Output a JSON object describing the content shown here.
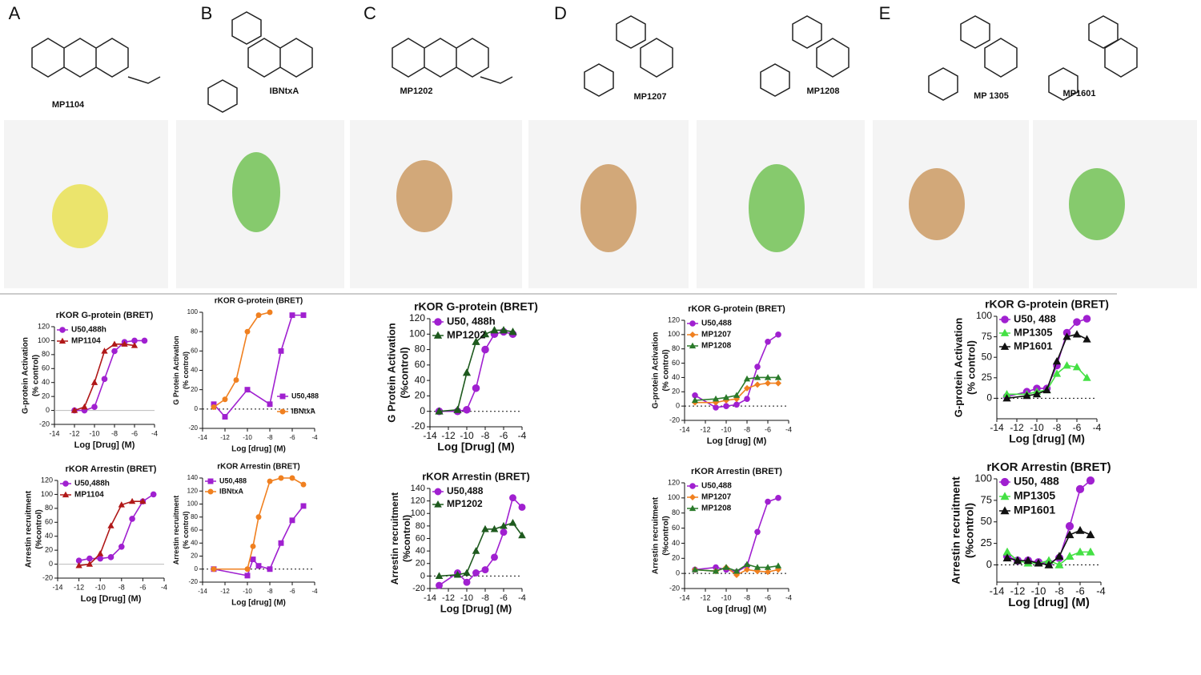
{
  "panels": [
    {
      "label": "A",
      "compounds": [
        "MP1104"
      ]
    },
    {
      "label": "B",
      "compounds": [
        "IBNtxA"
      ]
    },
    {
      "label": "C",
      "compounds": [
        "MP1202"
      ]
    },
    {
      "label": "D",
      "compounds": [
        "MP1207",
        "MP1208"
      ]
    },
    {
      "label": "E",
      "compounds": [
        "MP 1305",
        "MP1601"
      ]
    }
  ],
  "chart_data": [
    {
      "type": "line",
      "title": "rKOR G-protein (BRET)",
      "ylabel": [
        "G-protein Activation",
        "(% control)"
      ],
      "xlabel": "Log [Drug] (M)",
      "xlim": [
        -14,
        -4
      ],
      "xticks": [
        -14,
        -12,
        -10,
        -8,
        -6,
        -4
      ],
      "ylim": [
        -20,
        120
      ],
      "yticks": [
        -20,
        0,
        20,
        40,
        60,
        80,
        100,
        120
      ],
      "baseline": "solid",
      "legend": "upper left",
      "series": [
        {
          "name": "U50,488h",
          "color": "#a020d0",
          "marker": "circle",
          "x": [
            -12,
            -11,
            -10,
            -9,
            -8,
            -7,
            -6,
            -5
          ],
          "values": [
            0,
            0,
            5,
            45,
            85,
            98,
            100,
            100
          ]
        },
        {
          "name": "MP1104",
          "color": "#b01818",
          "marker": "triangle",
          "x": [
            -12,
            -11,
            -10,
            -9,
            -8,
            -7,
            -6
          ],
          "values": [
            0,
            5,
            40,
            85,
            95,
            95,
            93
          ]
        }
      ]
    },
    {
      "type": "line",
      "title": "rKOR G-protein (BRET)",
      "ylabel": [
        "G Protein Activation",
        "(% control)"
      ],
      "xlabel": "Log [drug] (M)",
      "xlim": [
        -14,
        -4
      ],
      "xticks": [
        -14,
        -12,
        -10,
        -8,
        -6,
        -4
      ],
      "ylim": [
        -20,
        100
      ],
      "yticks": [
        -20,
        0,
        20,
        40,
        60,
        80,
        100
      ],
      "baseline": "dotted",
      "legend": "lower right",
      "series": [
        {
          "name": "U50,488",
          "color": "#a020d0",
          "marker": "square",
          "x": [
            -13,
            -12,
            -10,
            -8,
            -7,
            -6,
            -5
          ],
          "values": [
            5,
            -8,
            20,
            5,
            60,
            97,
            97
          ]
        },
        {
          "name": "IBNtxA",
          "color": "#f08020",
          "marker": "circle",
          "x": [
            -13,
            -12,
            -11,
            -10,
            -9,
            -8
          ],
          "values": [
            2,
            10,
            30,
            80,
            97,
            100
          ]
        }
      ]
    },
    {
      "type": "line",
      "title": "rKOR G-protein  (BRET)",
      "ylabel": [
        "G Protein Activation",
        "(%control)"
      ],
      "xlabel": "Log [Drug] (M)",
      "xlim": [
        -14,
        -4
      ],
      "xticks": [
        -14,
        -12,
        -10,
        -8,
        -6,
        -4
      ],
      "ylim": [
        -20,
        120
      ],
      "yticks": [
        -20,
        0,
        20,
        40,
        60,
        80,
        100,
        120
      ],
      "baseline": "dotted",
      "legend": "upper left",
      "series": [
        {
          "name": "U50, 488h",
          "color": "#a020d0",
          "marker": "circle",
          "x": [
            -13,
            -11,
            -10,
            -9,
            -8,
            -7,
            -6,
            -5
          ],
          "values": [
            0,
            0,
            2,
            30,
            80,
            100,
            103,
            100
          ]
        },
        {
          "name": "MP1202",
          "color": "#1e5a1e",
          "marker": "triangle",
          "x": [
            -13,
            -11,
            -10,
            -9,
            -8,
            -7,
            -6,
            -5
          ],
          "values": [
            0,
            2,
            50,
            90,
            100,
            105,
            105,
            103
          ]
        }
      ]
    },
    {
      "type": "line",
      "title": "rKOR G-protein  (BRET)",
      "ylabel": [
        "G-protein Activation",
        "(% control)"
      ],
      "xlabel": "Log [drug] (M)",
      "xlim": [
        -14,
        -4
      ],
      "xticks": [
        -14,
        -12,
        -10,
        -8,
        -6,
        -4
      ],
      "ylim": [
        -20,
        120
      ],
      "yticks": [
        -20,
        0,
        20,
        40,
        60,
        80,
        100,
        120
      ],
      "baseline": "dotted",
      "legend": "upper left",
      "series": [
        {
          "name": "U50,488",
          "color": "#a020d0",
          "marker": "circle",
          "x": [
            -13,
            -11,
            -10,
            -9,
            -8,
            -7,
            -6,
            -5
          ],
          "values": [
            15,
            -2,
            0,
            2,
            10,
            55,
            90,
            100
          ]
        },
        {
          "name": "MP1207",
          "color": "#f08020",
          "marker": "diamond",
          "x": [
            -13,
            -11,
            -10,
            -9,
            -8,
            -7,
            -6,
            -5
          ],
          "values": [
            5,
            5,
            8,
            10,
            25,
            30,
            32,
            32
          ]
        },
        {
          "name": "MP1208",
          "color": "#2a7a2a",
          "marker": "triangle",
          "x": [
            -13,
            -11,
            -10,
            -9,
            -8,
            -7,
            -6,
            -5
          ],
          "values": [
            8,
            10,
            12,
            15,
            38,
            40,
            40,
            40
          ]
        }
      ]
    },
    {
      "type": "line",
      "title": "rKOR G-protein (BRET)",
      "ylabel": [
        "G-protein Activation",
        "(% control)"
      ],
      "xlabel": "Log [drug] (M)",
      "xlim": [
        -14,
        -4
      ],
      "xticks": [
        -14,
        -12,
        -10,
        -8,
        -6,
        -4
      ],
      "ylim": [
        -25,
        100
      ],
      "yticks": [
        0,
        25,
        50,
        75,
        100
      ],
      "baseline": "dotted",
      "legend": "upper left",
      "series": [
        {
          "name": "U50, 488",
          "color": "#a020d0",
          "marker": "circle",
          "x": [
            -13,
            -11,
            -10,
            -9,
            -8,
            -7,
            -6,
            -5
          ],
          "values": [
            2,
            8,
            12,
            12,
            40,
            80,
            93,
            97
          ]
        },
        {
          "name": "MP1305",
          "color": "#44e044",
          "marker": "triangle",
          "x": [
            -13,
            -11,
            -10,
            -9,
            -8,
            -7,
            -6,
            -5
          ],
          "values": [
            5,
            5,
            8,
            10,
            30,
            40,
            38,
            25
          ]
        },
        {
          "name": "MP1601",
          "color": "#111111",
          "marker": "triangle",
          "x": [
            -13,
            -11,
            -10,
            -9,
            -8,
            -7,
            -6,
            -5
          ],
          "values": [
            0,
            3,
            5,
            10,
            45,
            75,
            78,
            72
          ]
        }
      ]
    },
    {
      "type": "line",
      "title": "rKOR Arrestin (BRET)",
      "ylabel": [
        "Arrestin recruitment",
        "(%control)"
      ],
      "xlabel": "Log [Drug] (M)",
      "xlim": [
        -14,
        -4
      ],
      "xticks": [
        -14,
        -12,
        -10,
        -8,
        -6,
        -4
      ],
      "ylim": [
        -20,
        120
      ],
      "yticks": [
        -20,
        0,
        20,
        40,
        60,
        80,
        100,
        120
      ],
      "baseline": "solid",
      "legend": "upper left",
      "series": [
        {
          "name": "U50,488h",
          "color": "#a020d0",
          "marker": "circle",
          "x": [
            -12,
            -11,
            -10,
            -9,
            -8,
            -7,
            -6,
            -5
          ],
          "values": [
            5,
            8,
            8,
            10,
            25,
            65,
            90,
            100
          ]
        },
        {
          "name": "MP1104",
          "color": "#b01818",
          "marker": "triangle",
          "x": [
            -12,
            -11,
            -10,
            -9,
            -8,
            -7,
            -6
          ],
          "values": [
            -2,
            0,
            15,
            55,
            85,
            90,
            90
          ]
        }
      ]
    },
    {
      "type": "line",
      "title": "rKOR Arrestin (BRET)",
      "ylabel": [
        "Arrestin recruitment",
        "(% control)"
      ],
      "xlabel": "Log [drug] (M)",
      "xlim": [
        -14,
        -4
      ],
      "xticks": [
        -14,
        -12,
        -10,
        -8,
        -6,
        -4
      ],
      "ylim": [
        -20,
        140
      ],
      "yticks": [
        -20,
        0,
        20,
        40,
        60,
        80,
        100,
        120,
        140
      ],
      "baseline": "dotted",
      "legend": "upper left",
      "series": [
        {
          "name": "U50,488",
          "color": "#a020d0",
          "marker": "square",
          "x": [
            -13,
            -10,
            -9.5,
            -9,
            -8,
            -7,
            -6,
            -5
          ],
          "values": [
            0,
            -10,
            15,
            5,
            0,
            40,
            75,
            97
          ]
        },
        {
          "name": "IBNtxA",
          "color": "#f08020",
          "marker": "circle",
          "x": [
            -13,
            -10,
            -9.5,
            -9,
            -8,
            -7,
            -6,
            -5
          ],
          "values": [
            0,
            0,
            35,
            80,
            135,
            140,
            140,
            130
          ]
        }
      ]
    },
    {
      "type": "line",
      "title": "rKOR Arrestin (BRET)",
      "ylabel": [
        "Arrestin recruitment",
        "(%control)"
      ],
      "xlabel": "Log [Drug] (M)",
      "xlim": [
        -14,
        -4
      ],
      "xticks": [
        -14,
        -12,
        -10,
        -8,
        -6,
        -4
      ],
      "ylim": [
        -20,
        140
      ],
      "yticks": [
        -20,
        0,
        20,
        40,
        60,
        80,
        100,
        120,
        140
      ],
      "baseline": "dotted",
      "legend": "upper left",
      "series": [
        {
          "name": "U50,488",
          "color": "#a020d0",
          "marker": "circle",
          "x": [
            -13,
            -11,
            -10,
            -9,
            -8,
            -7,
            -6,
            -5,
            -4
          ],
          "values": [
            -15,
            5,
            -10,
            5,
            10,
            30,
            70,
            125,
            110
          ]
        },
        {
          "name": "MP1202",
          "color": "#1e5a1e",
          "marker": "triangle",
          "x": [
            -13,
            -11,
            -10,
            -9,
            -8,
            -7,
            -6,
            -5,
            -4
          ],
          "values": [
            0,
            2,
            5,
            40,
            75,
            75,
            80,
            85,
            65
          ]
        }
      ]
    },
    {
      "type": "line",
      "title": "rKOR Arrestin (BRET)",
      "ylabel": [
        "Arrestin recruitment",
        "(%control)"
      ],
      "xlabel": "Log [drug] (M)",
      "xlim": [
        -14,
        -4
      ],
      "xticks": [
        -14,
        -12,
        -10,
        -8,
        -6,
        -4
      ],
      "ylim": [
        -20,
        120
      ],
      "yticks": [
        -20,
        0,
        20,
        40,
        60,
        80,
        100,
        120
      ],
      "baseline": "dotted",
      "legend": "upper left",
      "series": [
        {
          "name": "U50,488",
          "color": "#a020d0",
          "marker": "circle",
          "x": [
            -13,
            -11,
            -10,
            -9,
            -8,
            -7,
            -6,
            -5
          ],
          "values": [
            5,
            8,
            5,
            2,
            10,
            55,
            95,
            100
          ]
        },
        {
          "name": "MP1207",
          "color": "#f08020",
          "marker": "diamond",
          "x": [
            -13,
            -11,
            -10,
            -9,
            -8,
            -7,
            -6,
            -5
          ],
          "values": [
            5,
            3,
            8,
            -2,
            5,
            3,
            2,
            5
          ]
        },
        {
          "name": "MP1208",
          "color": "#2a7a2a",
          "marker": "triangle",
          "x": [
            -13,
            -11,
            -10,
            -9,
            -8,
            -7,
            -6,
            -5
          ],
          "values": [
            5,
            3,
            8,
            3,
            12,
            8,
            8,
            10
          ]
        }
      ]
    },
    {
      "type": "line",
      "title": "rKOR Arrestin (BRET)",
      "ylabel": [
        "Arrestin recruitment",
        "(%control)"
      ],
      "xlabel": "Log [drug] (M)",
      "xlim": [
        -14,
        -4
      ],
      "xticks": [
        -14,
        -12,
        -10,
        -8,
        -6,
        -4
      ],
      "ylim": [
        -20,
        100
      ],
      "yticks": [
        0,
        25,
        50,
        75,
        100
      ],
      "baseline": "dotted",
      "legend": "upper left",
      "series": [
        {
          "name": "U50, 488",
          "color": "#a020d0",
          "marker": "circle",
          "x": [
            -13,
            -12,
            -11,
            -10,
            -9,
            -8,
            -7,
            -6,
            -5
          ],
          "values": [
            10,
            5,
            5,
            3,
            2,
            8,
            45,
            88,
            98
          ]
        },
        {
          "name": "MP1305",
          "color": "#44e044",
          "marker": "triangle",
          "x": [
            -13,
            -12,
            -11,
            -10,
            -9,
            -8,
            -7,
            -6,
            -5
          ],
          "values": [
            15,
            5,
            2,
            2,
            5,
            0,
            10,
            15,
            15
          ]
        },
        {
          "name": "MP1601",
          "color": "#111111",
          "marker": "triangle",
          "x": [
            -13,
            -12,
            -11,
            -10,
            -9,
            -8,
            -7,
            -6,
            -5
          ],
          "values": [
            8,
            5,
            5,
            2,
            0,
            10,
            35,
            40,
            35
          ]
        }
      ]
    }
  ]
}
